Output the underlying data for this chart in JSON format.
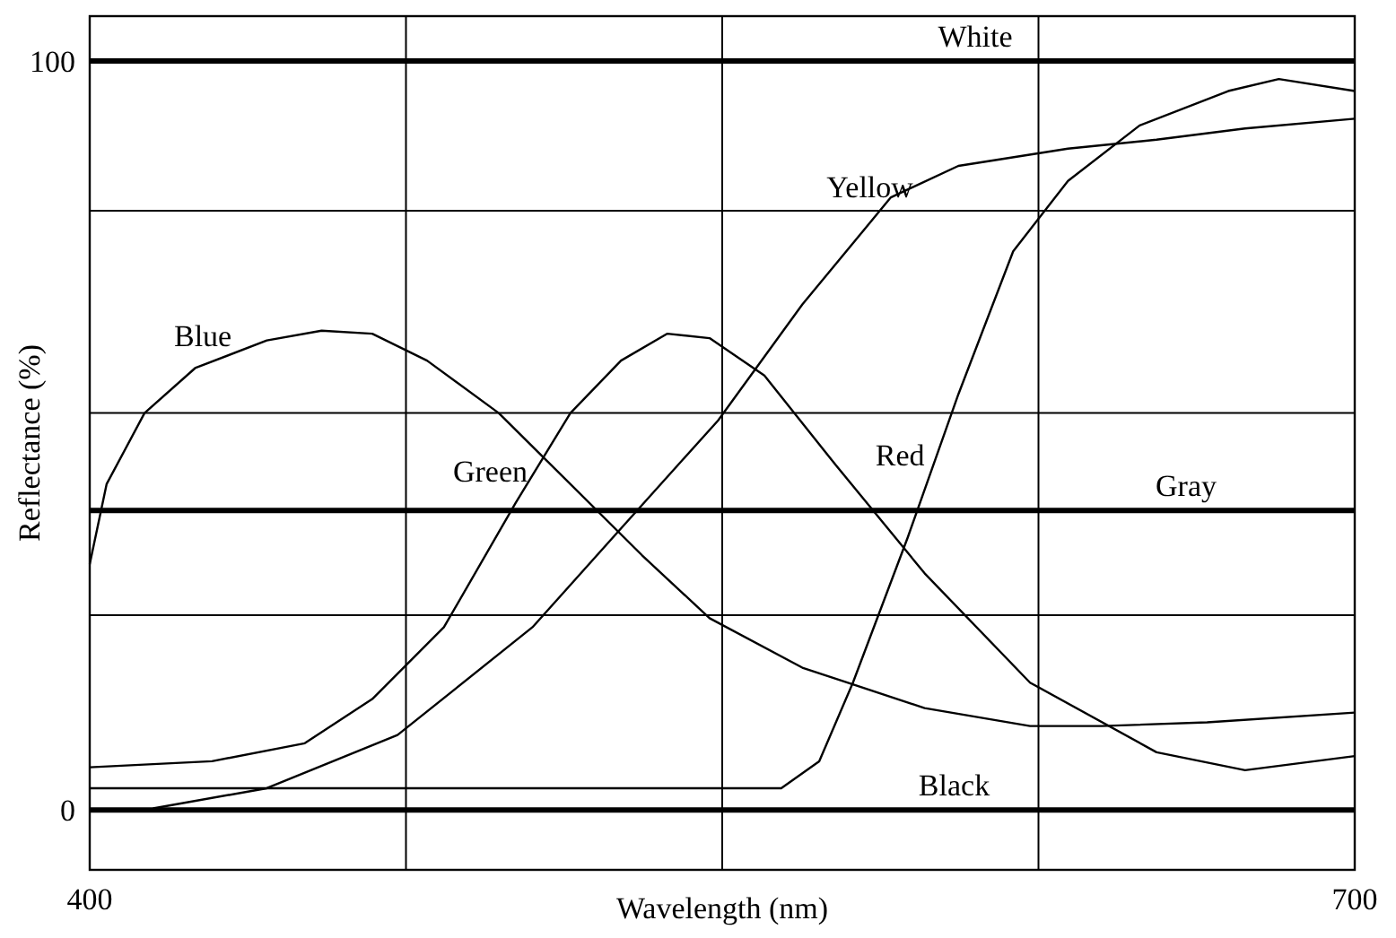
{
  "chart_data": {
    "type": "line",
    "xlabel": "Wavelength (nm)",
    "ylabel": "Reflectance (%)",
    "xlim": [
      400,
      700
    ],
    "ylim": [
      -8,
      106
    ],
    "xticks": [
      400,
      {
        "value": 475,
        "label": null
      },
      {
        "value": 550,
        "label": null
      },
      {
        "value": 625,
        "label": null
      },
      700
    ],
    "yticks": [
      0,
      {
        "value": 26,
        "label": null
      },
      {
        "value": 53,
        "label": null
      },
      {
        "value": 80,
        "label": null
      },
      100
    ],
    "grid": true,
    "marker": "none",
    "line_style": "solid",
    "series": [
      {
        "name": "White",
        "color": "#000000",
        "x": [
          400,
          700
        ],
        "values": [
          100,
          100
        ]
      },
      {
        "name": "Yellow",
        "color": "#000000",
        "x": [
          415,
          442,
          473,
          505,
          526,
          549,
          569,
          590,
          606,
          632,
          653,
          674,
          700
        ],
        "values": [
          0.2,
          2.9,
          10,
          24.4,
          37.6,
          52,
          67.5,
          81.8,
          86,
          88.3,
          89.5,
          91,
          92.3
        ]
      },
      {
        "name": "Blue",
        "color": "#000000",
        "x": [
          400,
          404,
          413,
          425,
          442,
          455,
          467,
          480,
          497,
          514,
          531,
          547,
          569,
          598,
          623,
          640,
          665,
          700
        ],
        "values": [
          32.8,
          43.5,
          53,
          59,
          62.7,
          64,
          63.6,
          60,
          53,
          43.5,
          34,
          25.6,
          19,
          13.6,
          11.2,
          11.2,
          11.7,
          13
        ]
      },
      {
        "name": "Green",
        "color": "#000000",
        "x": [
          400,
          429,
          451,
          467,
          484,
          501,
          514,
          526,
          537,
          547,
          560,
          577,
          598,
          623,
          653,
          674,
          700
        ],
        "values": [
          5.7,
          6.5,
          8.9,
          14.8,
          24.4,
          41,
          53,
          60,
          63.6,
          63,
          58,
          46,
          31.6,
          17,
          7.7,
          5.3,
          7.2
        ]
      },
      {
        "name": "Red",
        "color": "#000000",
        "x": [
          400,
          564,
          573,
          581,
          594,
          606,
          619,
          632,
          649,
          670,
          682,
          700
        ],
        "values": [
          2.9,
          2.9,
          6.5,
          17,
          36.4,
          55.5,
          74.6,
          84,
          91.4,
          96,
          97.6,
          96
        ]
      },
      {
        "name": "Gray",
        "color": "#000000",
        "x": [
          400,
          700
        ],
        "values": [
          40,
          40
        ]
      },
      {
        "name": "Black",
        "color": "#000000",
        "x": [
          400,
          700
        ],
        "values": [
          0,
          0
        ]
      }
    ]
  }
}
